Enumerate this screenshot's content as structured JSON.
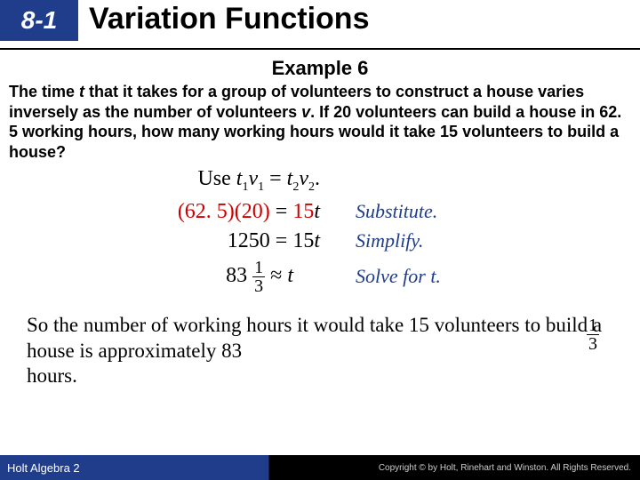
{
  "header": {
    "section_number": "8-1",
    "title": "Variation Functions",
    "blue_bg": "#1f3d8a"
  },
  "example_label": "Example 6",
  "problem": {
    "p1": "The time ",
    "t": "t",
    "p2": " that it takes for a group of volunteers to construct a house varies inversely as the number of volunteers ",
    "v": "v",
    "p3": ". If 20 volunteers can build a house in 62. 5 working hours, how many working hours would it take 15 volunteers to build a house?"
  },
  "work": {
    "line1_left": "Use ",
    "line1_eq_a": "t",
    "line1_eq_b": "1",
    "line1_eq_c": "v",
    "line1_eq_d": "1",
    "line1_mid": " = ",
    "line1_eq_e": "t",
    "line1_eq_f": "2",
    "line1_eq_g": "v",
    "line1_eq_h": "2",
    "line1_end": ".",
    "line2_lhs": "(62. 5)(20)",
    "line2_eq": " = ",
    "line2_rhs_a": "15",
    "line2_rhs_b": "t",
    "line2_note": "Substitute.",
    "line3_lhs": "1250",
    "line3_eq": " = ",
    "line3_rhs_a": "15",
    "line3_rhs_b": "t",
    "line3_note": "Simplify.",
    "line4_whole": "83",
    "line4_num": "1",
    "line4_den": "3",
    "line4_approx": " ≈ ",
    "line4_rhs": "t",
    "line4_note": "Solve for t."
  },
  "conclusion": {
    "text_a": "So the number of working hours it would take 15 volunteers to build a house is approximately   83",
    "text_b": "hours.",
    "frac_num": "1",
    "frac_den": "3"
  },
  "footer": {
    "book": "Holt Algebra 2",
    "copy": "Copyright © by Holt, Rinehart and Winston. All Rights Reserved."
  },
  "colors": {
    "red": "#cc0000",
    "blue": "#1f3d8a"
  }
}
